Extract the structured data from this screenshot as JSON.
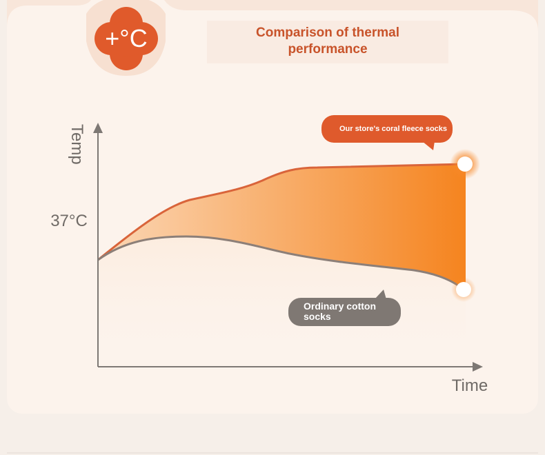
{
  "badge": {
    "label": "+°C"
  },
  "header": {
    "title": "Comparison of thermal performance"
  },
  "axes": {
    "y_label": "Temp",
    "x_label": "Time",
    "reference_label": "37°C"
  },
  "callouts": [
    {
      "label": "Our store's coral fleece socks"
    },
    {
      "label": "Ordinary cotton socks"
    }
  ]
}
